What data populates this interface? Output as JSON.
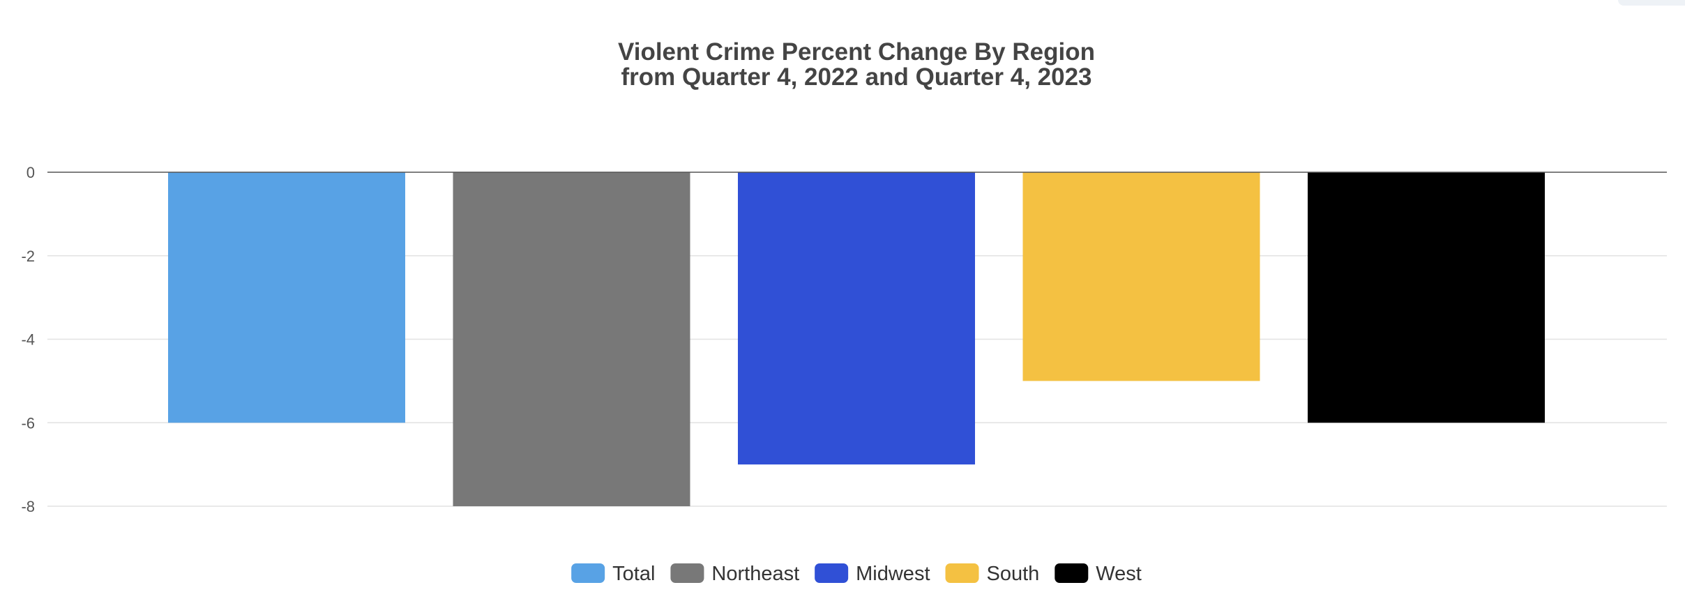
{
  "chart_data": {
    "type": "bar",
    "title": "Violent Crime Percent Change By Region",
    "subtitle": "from Quarter 4, 2022 and Quarter 4, 2023",
    "xlabel": "",
    "ylabel": "",
    "categories": [
      "Total",
      "Northeast",
      "Midwest",
      "South",
      "West"
    ],
    "values": [
      -6,
      -8,
      -7,
      -5,
      -6
    ],
    "colors": [
      "#58a2e5",
      "#787878",
      "#3050d6",
      "#f4c142",
      "#000000"
    ],
    "ylim": [
      -8,
      0
    ],
    "yticks": [
      0,
      -2,
      -4,
      -6,
      -8
    ],
    "ytick_labels": [
      "0",
      "-2",
      "-4",
      "-6",
      "-8"
    ],
    "grid": true,
    "legend": "bottom-center",
    "legend_entries": [
      {
        "label": "Total",
        "color": "#58a2e5"
      },
      {
        "label": "Northeast",
        "color": "#787878"
      },
      {
        "label": "Midwest",
        "color": "#3050d6"
      },
      {
        "label": "South",
        "color": "#f4c142"
      },
      {
        "label": "West",
        "color": "#000000"
      }
    ]
  }
}
